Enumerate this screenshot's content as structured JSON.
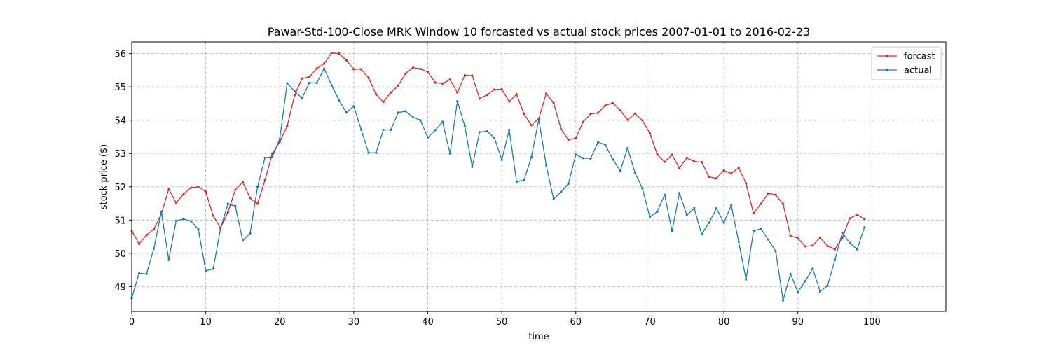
{
  "chart_data": {
    "type": "line",
    "title": "Pawar-Std-100-Close MRK Window 10 forcasted vs actual stock prices 2007-01-01 to 2016-02-23",
    "xlabel": "time",
    "ylabel": "stock price ($)",
    "xlim": [
      0,
      110
    ],
    "ylim": [
      48.25,
      56.35
    ],
    "xticks": [
      0,
      10,
      20,
      30,
      40,
      50,
      60,
      70,
      80,
      90,
      100
    ],
    "yticks": [
      49,
      50,
      51,
      52,
      53,
      54,
      55,
      56
    ],
    "grid": true,
    "legend_position": "top-right",
    "series": [
      {
        "name": "forcast",
        "color": "#d62728",
        "values": [
          50.68,
          50.28,
          50.55,
          50.73,
          51.18,
          51.93,
          51.52,
          51.78,
          51.97,
          52.0,
          51.85,
          51.13,
          50.76,
          51.24,
          51.91,
          52.14,
          51.66,
          51.49,
          52.2,
          53.0,
          53.35,
          53.82,
          54.75,
          55.25,
          55.3,
          55.55,
          55.7,
          56.02,
          56.0,
          55.8,
          55.53,
          55.53,
          55.27,
          54.78,
          54.55,
          54.83,
          55.04,
          55.4,
          55.58,
          55.54,
          55.45,
          55.13,
          55.1,
          55.22,
          54.83,
          55.35,
          55.34,
          54.65,
          54.76,
          54.92,
          54.93,
          54.56,
          54.78,
          54.19,
          53.85,
          54.05,
          54.8,
          54.52,
          53.74,
          53.41,
          53.46,
          53.95,
          54.19,
          54.22,
          54.44,
          54.52,
          54.3,
          54.01,
          54.2,
          53.99,
          53.61,
          52.97,
          52.75,
          52.96,
          52.56,
          52.87,
          52.76,
          52.74,
          52.3,
          52.25,
          52.49,
          52.4,
          52.57,
          52.1,
          51.2,
          51.49,
          51.8,
          51.76,
          51.48,
          50.53,
          50.45,
          50.21,
          50.23,
          50.47,
          50.22,
          50.12,
          50.46,
          51.05,
          51.16,
          51.03
        ]
      },
      {
        "name": "actual",
        "color": "#1f77b4",
        "values": [
          48.65,
          49.4,
          49.38,
          50.15,
          51.25,
          49.8,
          50.98,
          51.03,
          50.97,
          50.72,
          49.47,
          49.53,
          50.74,
          51.49,
          51.42,
          50.38,
          50.6,
          52.0,
          52.87,
          52.9,
          53.44,
          55.11,
          54.87,
          54.66,
          55.12,
          55.12,
          55.55,
          55.05,
          54.6,
          54.23,
          54.42,
          53.72,
          53.02,
          53.02,
          53.71,
          53.71,
          54.23,
          54.27,
          54.09,
          54.0,
          53.48,
          53.7,
          53.95,
          53.0,
          54.57,
          53.82,
          52.6,
          53.64,
          53.67,
          53.47,
          52.81,
          53.71,
          52.15,
          52.2,
          52.89,
          54.03,
          52.65,
          51.63,
          51.85,
          52.09,
          52.97,
          52.86,
          52.85,
          53.34,
          53.26,
          52.82,
          52.48,
          53.16,
          52.42,
          51.95,
          51.09,
          51.25,
          51.76,
          50.67,
          51.81,
          51.15,
          51.35,
          50.57,
          50.92,
          51.35,
          50.92,
          51.44,
          50.35,
          49.21,
          50.67,
          50.74,
          50.41,
          50.06,
          48.59,
          49.38,
          48.83,
          49.16,
          49.54,
          48.85,
          49.02,
          49.8,
          50.62,
          50.31,
          50.12,
          50.78
        ]
      }
    ]
  }
}
